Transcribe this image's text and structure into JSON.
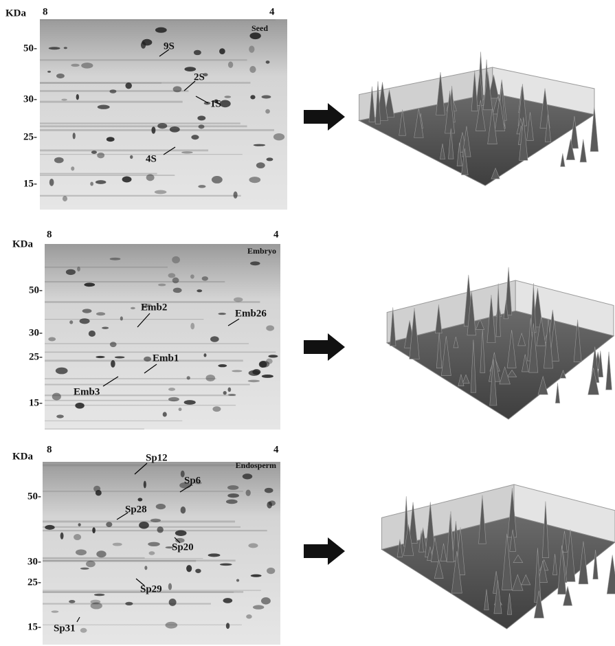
{
  "panels": [
    {
      "mw_unit": "KDa",
      "pI_left": "8",
      "pI_right": "4",
      "tissue": "Seed",
      "mw_markers": [
        "50-",
        "30-",
        "25-",
        "15-"
      ],
      "spots": [
        "9S",
        "2S",
        "1S",
        "4S"
      ]
    },
    {
      "mw_unit": "KDa",
      "pI_left": "8",
      "pI_right": "4",
      "tissue": "Embryo",
      "mw_markers": [
        "50-",
        "30-",
        "25-",
        "15-"
      ],
      "spots": [
        "Emb2",
        "Emb26",
        "Emb1",
        "Emb3"
      ]
    },
    {
      "mw_unit": "KDa",
      "pI_left": "8",
      "pI_right": "4",
      "tissue": "Endosperm",
      "mw_markers": [
        "50-",
        "30-",
        "25-",
        "15-"
      ],
      "spots": [
        "Sp6",
        "Sp12",
        "Sp28",
        "Sp20",
        "Sp29",
        "Sp31"
      ]
    }
  ]
}
